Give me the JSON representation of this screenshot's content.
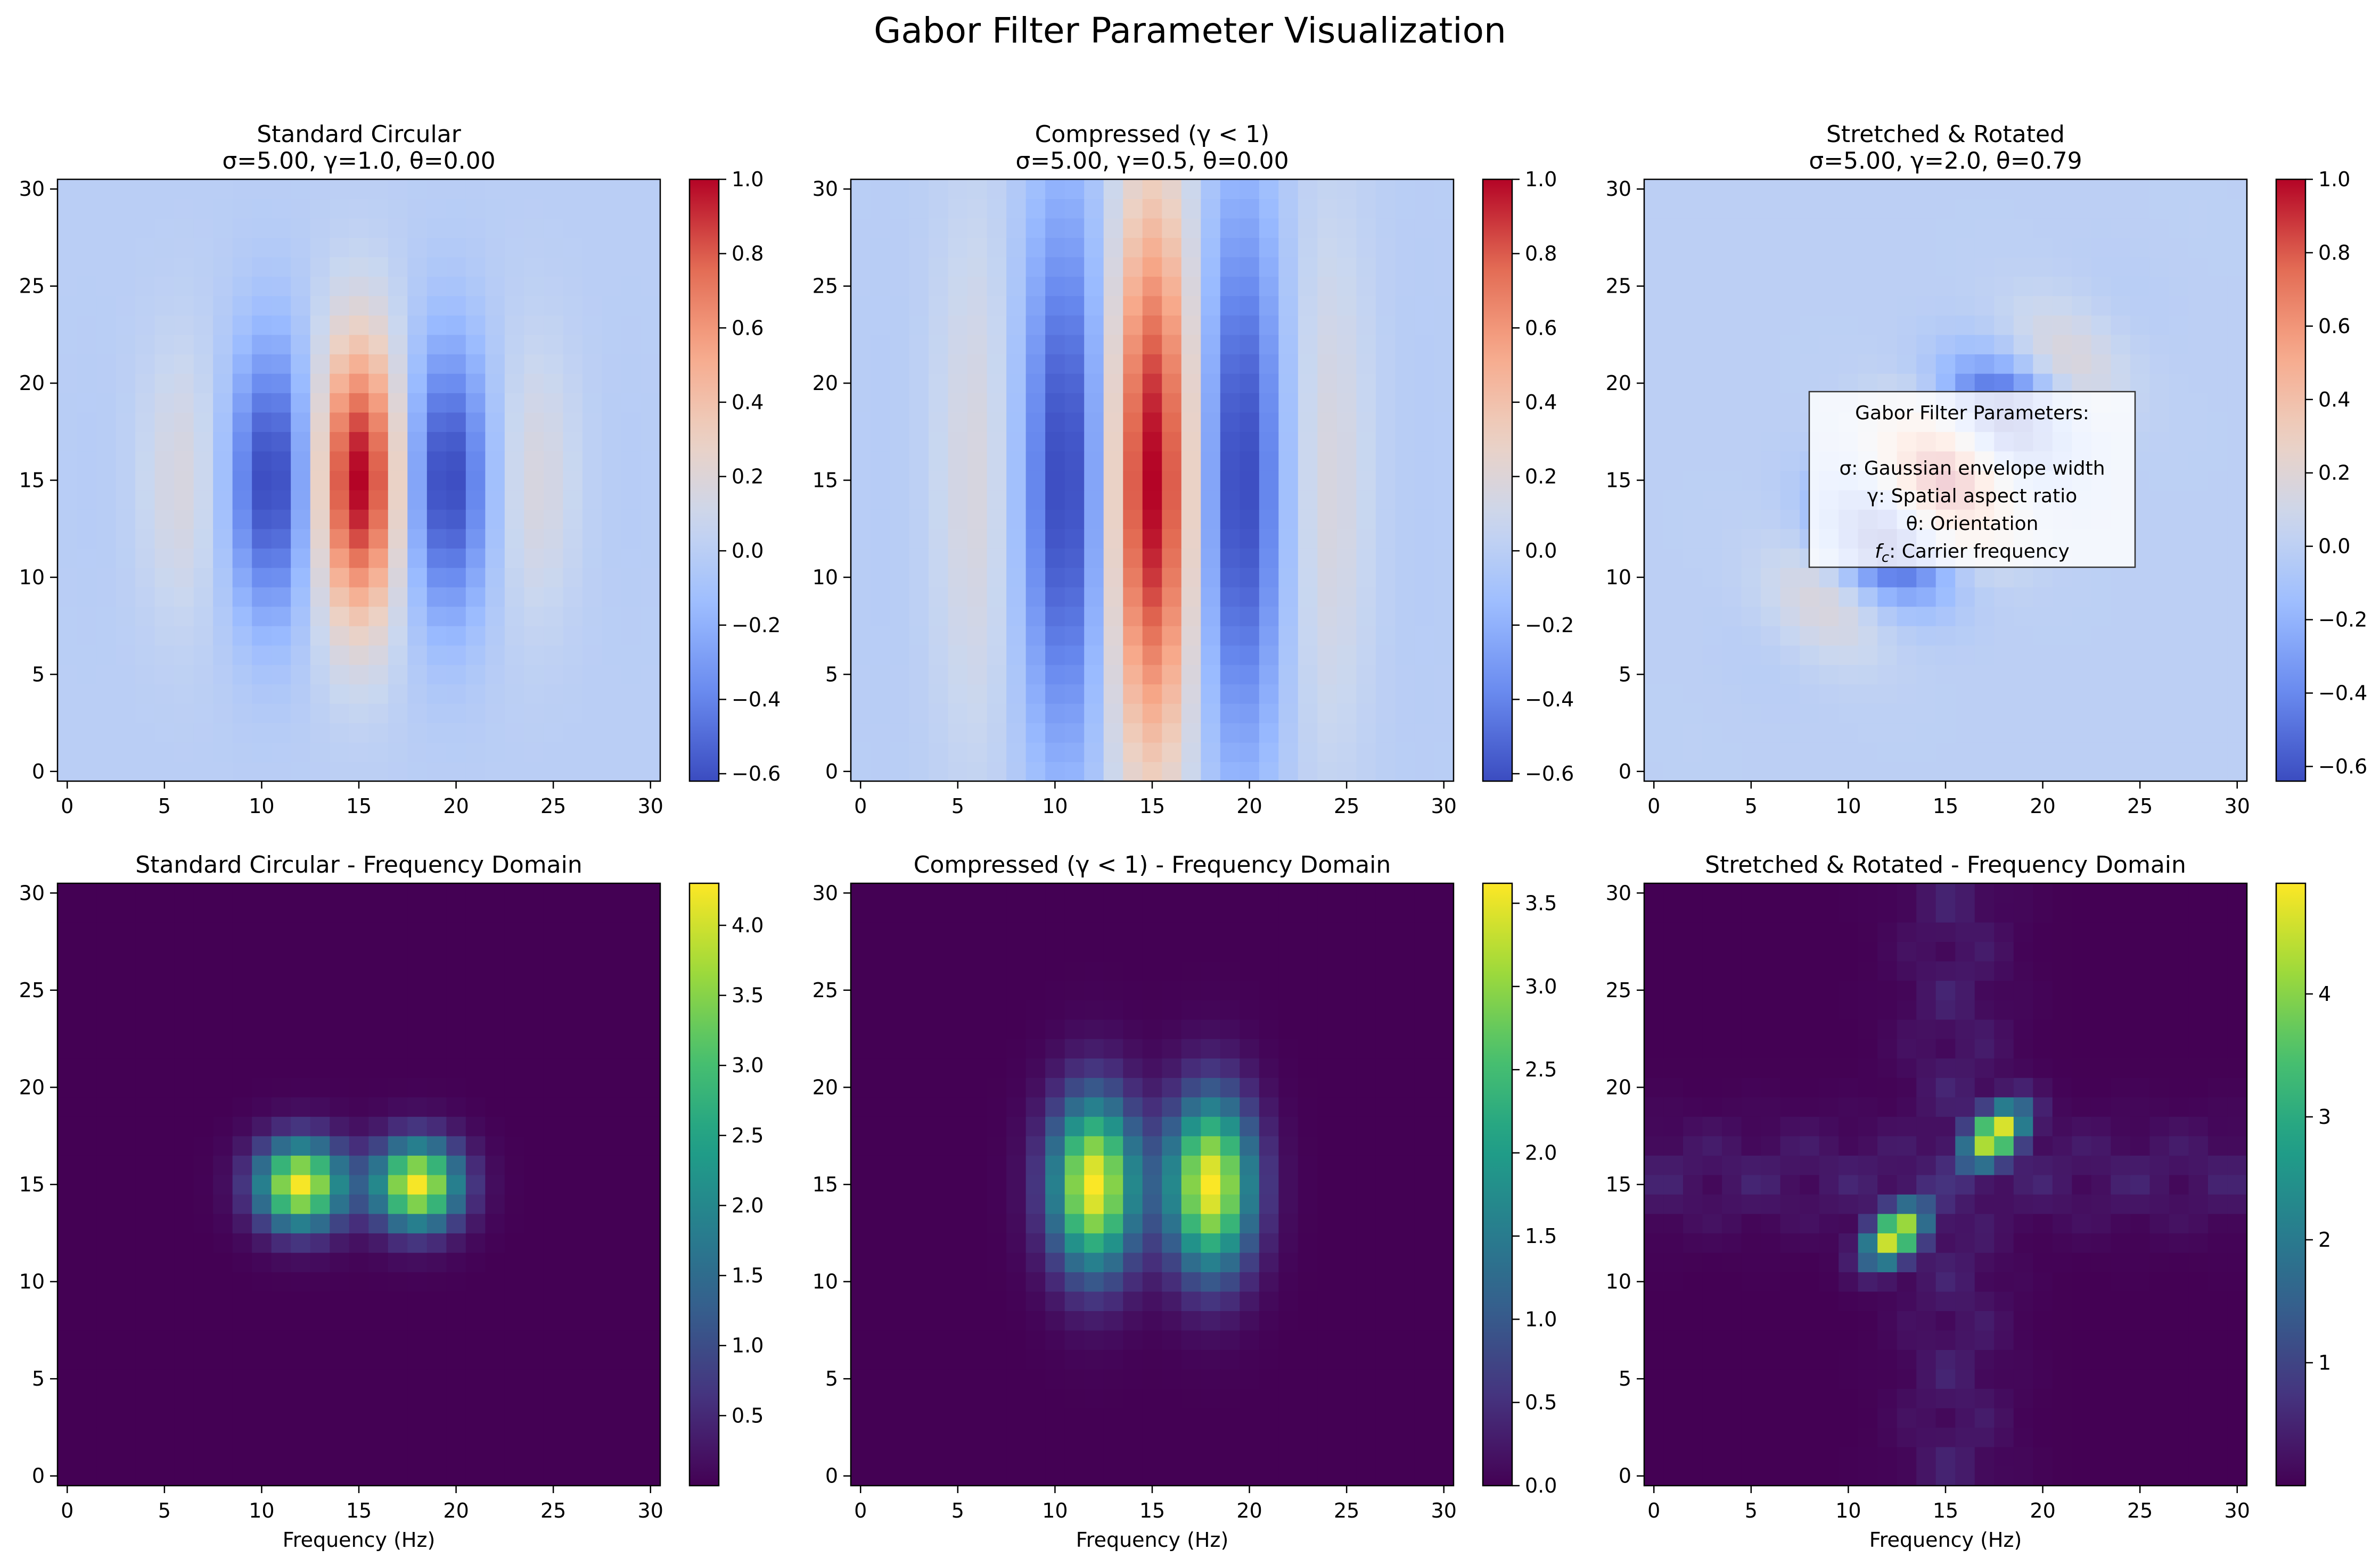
{
  "figure": {
    "title": "Gabor Filter Parameter Visualization"
  },
  "colormaps": {
    "coolwarm": [
      "#3b4cc0",
      "#6788ee",
      "#9abbff",
      "#c9d7f0",
      "#edd1c2",
      "#f7a889",
      "#e26952",
      "#b40426"
    ],
    "viridis": [
      "#440154",
      "#46327e",
      "#365c8d",
      "#277f8e",
      "#1fa187",
      "#4ac16d",
      "#a0da39",
      "#fde725"
    ]
  },
  "chart_data": [
    {
      "type": "heatmap",
      "title_lines": [
        "Standard Circular",
        "σ=5.00, γ=1.0, θ=0.00"
      ],
      "xlabel": "",
      "ylabel": "",
      "kind": "spatial",
      "params": {
        "sigma": 5.0,
        "gamma": 1.0,
        "theta": 0.0
      },
      "grid_size": [
        31,
        31
      ],
      "xlim": [
        -0.5,
        30.5
      ],
      "ylim": [
        -0.5,
        30.5
      ],
      "xticks": [
        0,
        5,
        10,
        15,
        20,
        25,
        30
      ],
      "yticks": [
        0,
        5,
        10,
        15,
        20,
        25,
        30
      ],
      "colormap": "coolwarm",
      "vmin": -0.62,
      "vmax": 1.0,
      "colorbar_ticks": [
        "1.0",
        "0.8",
        "0.6",
        "0.4",
        "0.2",
        "0.0",
        "−0.2",
        "−0.4",
        "−0.6"
      ],
      "colorbar_tick_values": [
        1.0,
        0.8,
        0.6,
        0.4,
        0.2,
        0.0,
        -0.2,
        -0.4,
        -0.6
      ]
    },
    {
      "type": "heatmap",
      "title_lines": [
        "Compressed (γ < 1)",
        "σ=5.00, γ=0.5, θ=0.00"
      ],
      "xlabel": "",
      "ylabel": "",
      "kind": "spatial",
      "params": {
        "sigma": 5.0,
        "gamma": 0.5,
        "theta": 0.0
      },
      "grid_size": [
        31,
        31
      ],
      "xlim": [
        -0.5,
        30.5
      ],
      "ylim": [
        -0.5,
        30.5
      ],
      "xticks": [
        0,
        5,
        10,
        15,
        20,
        25,
        30
      ],
      "yticks": [
        0,
        5,
        10,
        15,
        20,
        25,
        30
      ],
      "colormap": "coolwarm",
      "vmin": -0.62,
      "vmax": 1.0,
      "colorbar_ticks": [
        "1.0",
        "0.8",
        "0.6",
        "0.4",
        "0.2",
        "0.0",
        "−0.2",
        "−0.4",
        "−0.6"
      ],
      "colorbar_tick_values": [
        1.0,
        0.8,
        0.6,
        0.4,
        0.2,
        0.0,
        -0.2,
        -0.4,
        -0.6
      ]
    },
    {
      "type": "heatmap",
      "title_lines": [
        "Stretched & Rotated",
        "σ=5.00, γ=2.0, θ=0.79"
      ],
      "xlabel": "",
      "ylabel": "",
      "kind": "spatial",
      "params": {
        "sigma": 5.0,
        "gamma": 2.0,
        "theta": 0.79
      },
      "grid_size": [
        31,
        31
      ],
      "xlim": [
        -0.5,
        30.5
      ],
      "ylim": [
        -0.5,
        30.5
      ],
      "xticks": [
        0,
        5,
        10,
        15,
        20,
        25,
        30
      ],
      "yticks": [
        0,
        5,
        10,
        15,
        20,
        25,
        30
      ],
      "colormap": "coolwarm",
      "vmin": -0.64,
      "vmax": 1.0,
      "colorbar_ticks": [
        "1.0",
        "0.8",
        "0.6",
        "0.4",
        "0.2",
        "0.0",
        "−0.2",
        "−0.4",
        "−0.6"
      ],
      "colorbar_tick_values": [
        1.0,
        0.8,
        0.6,
        0.4,
        0.2,
        0.0,
        -0.2,
        -0.4,
        -0.6
      ],
      "annotation": {
        "placement": "center",
        "lines": [
          "Gabor Filter Parameters:",
          "",
          "σ: Gaussian envelope width",
          "γ: Spatial aspect ratio",
          "θ: Orientation",
          "fc: Carrier frequency"
        ]
      }
    },
    {
      "type": "heatmap",
      "title_lines": [
        "Standard Circular - Frequency Domain"
      ],
      "xlabel": "Frequency (Hz)",
      "ylabel": "",
      "kind": "frequency",
      "params": {
        "sigma": 5.0,
        "gamma": 1.0,
        "theta": 0.0
      },
      "grid_size": [
        31,
        31
      ],
      "xlim": [
        -0.5,
        30.5
      ],
      "ylim": [
        -0.5,
        30.5
      ],
      "xticks": [
        0,
        5,
        10,
        15,
        20,
        25,
        30
      ],
      "yticks": [
        0,
        5,
        10,
        15,
        20,
        25,
        30
      ],
      "colormap": "viridis",
      "vmin": 0.0,
      "vmax": 4.3,
      "peak": 4.25,
      "colorbar_ticks": [
        "4.0",
        "3.5",
        "3.0",
        "2.5",
        "2.0",
        "1.5",
        "1.0",
        "0.5"
      ],
      "colorbar_tick_values": [
        4.0,
        3.5,
        3.0,
        2.5,
        2.0,
        1.5,
        1.0,
        0.5
      ]
    },
    {
      "type": "heatmap",
      "title_lines": [
        "Compressed (γ < 1) - Frequency Domain"
      ],
      "xlabel": "Frequency (Hz)",
      "ylabel": "",
      "kind": "frequency",
      "params": {
        "sigma": 5.0,
        "gamma": 0.5,
        "theta": 0.0
      },
      "grid_size": [
        31,
        31
      ],
      "xlim": [
        -0.5,
        30.5
      ],
      "ylim": [
        -0.5,
        30.5
      ],
      "xticks": [
        0,
        5,
        10,
        15,
        20,
        25,
        30
      ],
      "yticks": [
        0,
        5,
        10,
        15,
        20,
        25,
        30
      ],
      "colormap": "viridis",
      "vmin": 0.0,
      "vmax": 3.62,
      "peak": 3.6,
      "colorbar_ticks": [
        "3.5",
        "3.0",
        "2.5",
        "2.0",
        "1.5",
        "1.0",
        "0.5",
        "0.0"
      ],
      "colorbar_tick_values": [
        3.5,
        3.0,
        2.5,
        2.0,
        1.5,
        1.0,
        0.5,
        0.0
      ]
    },
    {
      "type": "heatmap",
      "title_lines": [
        "Stretched & Rotated - Frequency Domain"
      ],
      "xlabel": "Frequency (Hz)",
      "ylabel": "",
      "kind": "frequency",
      "params": {
        "sigma": 5.0,
        "gamma": 2.0,
        "theta": 0.79
      },
      "grid_size": [
        31,
        31
      ],
      "xlim": [
        -0.5,
        30.5
      ],
      "ylim": [
        -0.5,
        30.5
      ],
      "xticks": [
        0,
        5,
        10,
        15,
        20,
        25,
        30
      ],
      "yticks": [
        0,
        5,
        10,
        15,
        20,
        25,
        30
      ],
      "colormap": "viridis",
      "vmin": 0.0,
      "vmax": 4.9,
      "peak": 4.85,
      "colorbar_ticks": [
        "4",
        "3",
        "2",
        "1"
      ],
      "colorbar_tick_values": [
        4,
        3,
        2,
        1
      ]
    }
  ]
}
